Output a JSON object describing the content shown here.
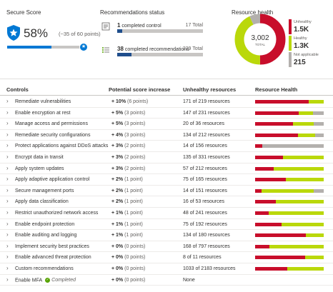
{
  "secure_score": {
    "title": "Secure Score",
    "percent": "58%",
    "detail": "(~35 of 60 points)",
    "fraction": 0.58
  },
  "recommendations_status": {
    "title": "Recommendations status",
    "items": [
      {
        "count": "1",
        "label": "completed control",
        "total": "17 Total",
        "fraction": 0.06
      },
      {
        "count": "38",
        "label": "completed recommendations",
        "total": "229 Total",
        "fraction": 0.17
      }
    ]
  },
  "resource_health": {
    "title": "Resource health",
    "center_value": "3,002",
    "center_label": "TOTAL",
    "legend": [
      {
        "label": "Unhealthy",
        "value": "1.5K",
        "color": "#c80e2b"
      },
      {
        "label": "Healthy",
        "value": "1.3K",
        "color": "#bad80a"
      },
      {
        "label": "Not applicable",
        "value": "215",
        "color": "#b3b0ad"
      }
    ],
    "fractions": {
      "unhealthy": 0.5,
      "healthy": 0.43,
      "na": 0.07
    }
  },
  "table": {
    "headers": {
      "controls": "Controls",
      "increase": "Potential score increase",
      "unhealthy": "Unhealthy resources",
      "health": "Resource Health"
    },
    "rows": [
      {
        "name": "Remediate vulnerabilities",
        "inc": "+ 10%",
        "points": "(6 points)",
        "unhealthy": "171 of 219 resources",
        "bar": [
          0.78,
          0.22,
          0
        ]
      },
      {
        "name": "Enable encryption at rest",
        "inc": "+ 5%",
        "points": "(3 points)",
        "unhealthy": "147 of 231 resources",
        "bar": [
          0.64,
          0.2,
          0.16
        ]
      },
      {
        "name": "Manage access and permissions",
        "inc": "+ 5%",
        "points": "(3 points)",
        "unhealthy": "20 of 36 resources",
        "bar": [
          0.55,
          0.3,
          0.15
        ]
      },
      {
        "name": "Remediate security configurations",
        "inc": "+ 4%",
        "points": "(3 points)",
        "unhealthy": "134 of 212 resources",
        "bar": [
          0.62,
          0.26,
          0.12
        ]
      },
      {
        "name": "Protect applications against DDoS attacks",
        "inc": "+ 3%",
        "points": "(2 points)",
        "unhealthy": "14 of 156 resources",
        "bar": [
          0.1,
          0.0,
          0.9
        ]
      },
      {
        "name": "Encrypt data in transit",
        "inc": "+ 3%",
        "points": "(2 points)",
        "unhealthy": "135 of 331 resources",
        "bar": [
          0.41,
          0.59,
          0
        ]
      },
      {
        "name": "Apply system updates",
        "inc": "+ 3%",
        "points": "(2 points)",
        "unhealthy": "57 of 212 resources",
        "bar": [
          0.27,
          0.73,
          0
        ]
      },
      {
        "name": "Apply adaptive application control",
        "inc": "+ 2%",
        "points": "(1 point)",
        "unhealthy": "75 of 165 resources",
        "bar": [
          0.45,
          0.55,
          0
        ]
      },
      {
        "name": "Secure management ports",
        "inc": "+ 2%",
        "points": "(1 point)",
        "unhealthy": "14 of 151 resources",
        "bar": [
          0.09,
          0.76,
          0.15
        ]
      },
      {
        "name": "Apply data classification",
        "inc": "+ 2%",
        "points": "(1 point)",
        "unhealthy": "16 of 53 resources",
        "bar": [
          0.3,
          0.7,
          0
        ]
      },
      {
        "name": "Restrict unauthorized network access",
        "inc": "+ 1%",
        "points": "(1 point)",
        "unhealthy": "48 of 241 resources",
        "bar": [
          0.2,
          0.8,
          0
        ]
      },
      {
        "name": "Enable endpoint protection",
        "inc": "+ 1%",
        "points": "(1 point)",
        "unhealthy": "75 of 192 resources",
        "bar": [
          0.39,
          0.61,
          0
        ]
      },
      {
        "name": "Enable auditing and logging",
        "inc": "+ 1%",
        "points": "(1 point)",
        "unhealthy": "134 of 180 resources",
        "bar": [
          0.74,
          0.26,
          0
        ]
      },
      {
        "name": "Implement security best practices",
        "inc": "+ 0%",
        "points": "(0 points)",
        "unhealthy": "168 of 797 resources",
        "bar": [
          0.21,
          0.79,
          0
        ]
      },
      {
        "name": "Enable advanced threat protection",
        "inc": "+ 0%",
        "points": "(0 points)",
        "unhealthy": "8 of 11 resources",
        "bar": [
          0.73,
          0.27,
          0
        ]
      },
      {
        "name": "Custom recommendations",
        "inc": "+ 0%",
        "points": "(0 points)",
        "unhealthy": "1033 of 2183 resources",
        "bar": [
          0.47,
          0.53,
          0
        ]
      },
      {
        "name": "Enable MFA",
        "inc": "+ 0%",
        "points": "(0 points)",
        "unhealthy": "None",
        "bar": [
          0,
          0,
          0
        ],
        "status": "Completed"
      }
    ]
  }
}
